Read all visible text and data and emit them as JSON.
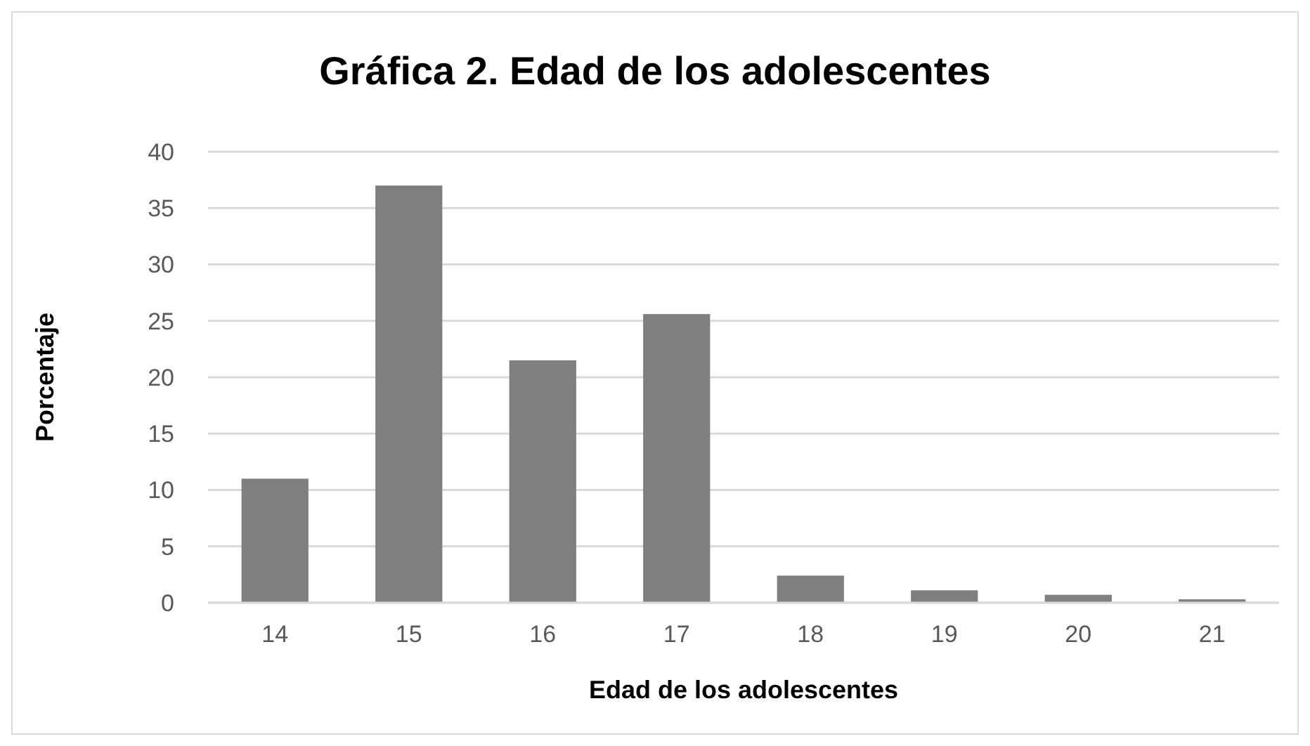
{
  "chart_data": {
    "type": "bar",
    "title": "Gráfica 2. Edad de los adolescentes",
    "xlabel": "Edad de los adolescentes",
    "ylabel": "Porcentaje",
    "categories": [
      "14",
      "15",
      "16",
      "17",
      "18",
      "19",
      "20",
      "21"
    ],
    "values": [
      11.0,
      37.0,
      21.5,
      25.6,
      2.4,
      1.1,
      0.7,
      0.3
    ],
    "color": "#7f7f7f",
    "ylim": [
      0,
      40
    ],
    "yticks": [
      0,
      5,
      10,
      15,
      20,
      25,
      30,
      35,
      40
    ],
    "grid": "y"
  }
}
